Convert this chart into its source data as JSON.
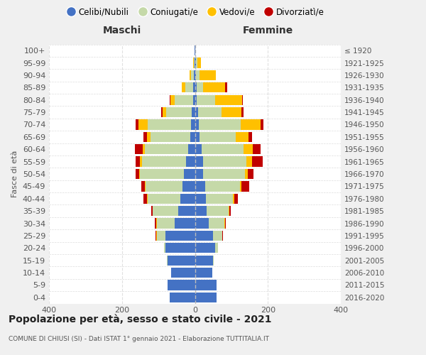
{
  "age_groups": [
    "100+",
    "95-99",
    "90-94",
    "85-89",
    "80-84",
    "75-79",
    "70-74",
    "65-69",
    "60-64",
    "55-59",
    "50-54",
    "45-49",
    "40-44",
    "35-39",
    "30-34",
    "25-29",
    "20-24",
    "15-19",
    "10-14",
    "5-9",
    "0-4"
  ],
  "birth_years": [
    "≤ 1920",
    "1921-1925",
    "1926-1930",
    "1931-1935",
    "1936-1940",
    "1941-1945",
    "1946-1950",
    "1951-1955",
    "1956-1960",
    "1961-1965",
    "1966-1970",
    "1971-1975",
    "1976-1980",
    "1981-1985",
    "1986-1990",
    "1991-1995",
    "1996-2000",
    "2001-2005",
    "2006-2010",
    "2011-2015",
    "2016-2020"
  ],
  "male": {
    "celibe": [
      1,
      1,
      2,
      4,
      5,
      8,
      10,
      12,
      18,
      25,
      30,
      35,
      40,
      45,
      55,
      80,
      80,
      75,
      65,
      75,
      70
    ],
    "coniugato": [
      0,
      2,
      8,
      22,
      50,
      70,
      120,
      110,
      120,
      120,
      120,
      100,
      90,
      70,
      50,
      25,
      5,
      2,
      0,
      0,
      0
    ],
    "vedovo": [
      0,
      2,
      5,
      10,
      12,
      10,
      25,
      10,
      5,
      5,
      2,
      2,
      2,
      0,
      2,
      2,
      0,
      0,
      0,
      0,
      0
    ],
    "divorziato": [
      0,
      0,
      0,
      0,
      2,
      5,
      8,
      10,
      22,
      12,
      10,
      10,
      10,
      5,
      3,
      2,
      0,
      0,
      0,
      0,
      0
    ]
  },
  "female": {
    "nubile": [
      1,
      2,
      3,
      5,
      5,
      8,
      10,
      12,
      18,
      22,
      22,
      28,
      30,
      32,
      38,
      50,
      55,
      50,
      48,
      60,
      60
    ],
    "coniugata": [
      0,
      5,
      10,
      18,
      50,
      65,
      115,
      100,
      115,
      120,
      115,
      95,
      75,
      60,
      42,
      25,
      8,
      2,
      0,
      0,
      0
    ],
    "vedova": [
      0,
      10,
      45,
      60,
      75,
      55,
      55,
      35,
      25,
      15,
      8,
      5,
      3,
      2,
      2,
      0,
      0,
      0,
      0,
      0,
      0
    ],
    "divorziata": [
      0,
      0,
      0,
      5,
      2,
      5,
      8,
      10,
      22,
      28,
      15,
      20,
      10,
      5,
      2,
      2,
      0,
      0,
      0,
      0,
      0
    ]
  },
  "colors": {
    "celibe": "#4472c4",
    "coniugato": "#c5d9a8",
    "vedovo": "#ffc000",
    "divorziato": "#c00000"
  },
  "xlim": 400,
  "title": "Popolazione per età, sesso e stato civile - 2021",
  "subtitle": "COMUNE DI CHIUSI (SI) - Dati ISTAT 1° gennaio 2021 - Elaborazione TUTTITALIA.IT",
  "xlabel_left": "Maschi",
  "xlabel_right": "Femmine",
  "ylabel_left": "Fasce di età",
  "bg_color": "#f0f0f0",
  "plot_bg_color": "#ffffff"
}
